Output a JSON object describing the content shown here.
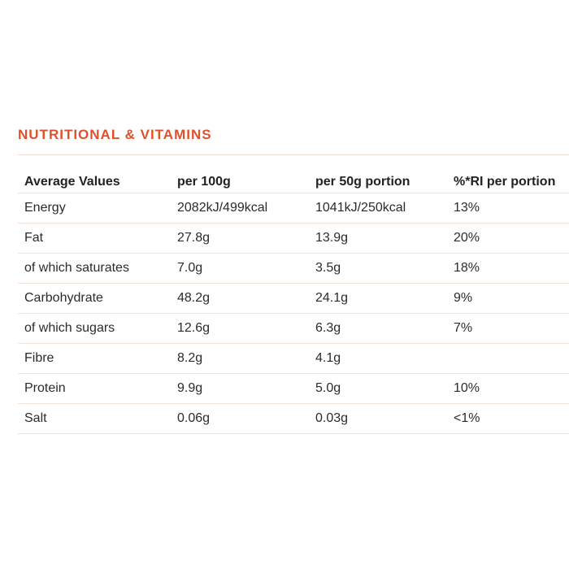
{
  "section": {
    "title": "NUTRITIONAL & VITAMINS"
  },
  "colors": {
    "accent": "#e0502a",
    "rule": "#f3e2da",
    "text": "#2b2b2b"
  },
  "table": {
    "headers": [
      "Average Values",
      "per 100g",
      "per 50g portion",
      "%*RI per portion"
    ],
    "rows": [
      [
        "Energy",
        "2082kJ/499kcal",
        "1041kJ/250kcal",
        "13%"
      ],
      [
        "Fat",
        "27.8g",
        "13.9g",
        "20%"
      ],
      [
        "of which saturates",
        "7.0g",
        "3.5g",
        "18%"
      ],
      [
        "Carbohydrate",
        "48.2g",
        "24.1g",
        "9%"
      ],
      [
        "of which sugars",
        "12.6g",
        "6.3g",
        "7%"
      ],
      [
        "Fibre",
        "8.2g",
        "4.1g",
        ""
      ],
      [
        "Protein",
        "9.9g",
        "5.0g",
        "10%"
      ],
      [
        "Salt",
        "0.06g",
        "0.03g",
        "<1%"
      ]
    ]
  }
}
